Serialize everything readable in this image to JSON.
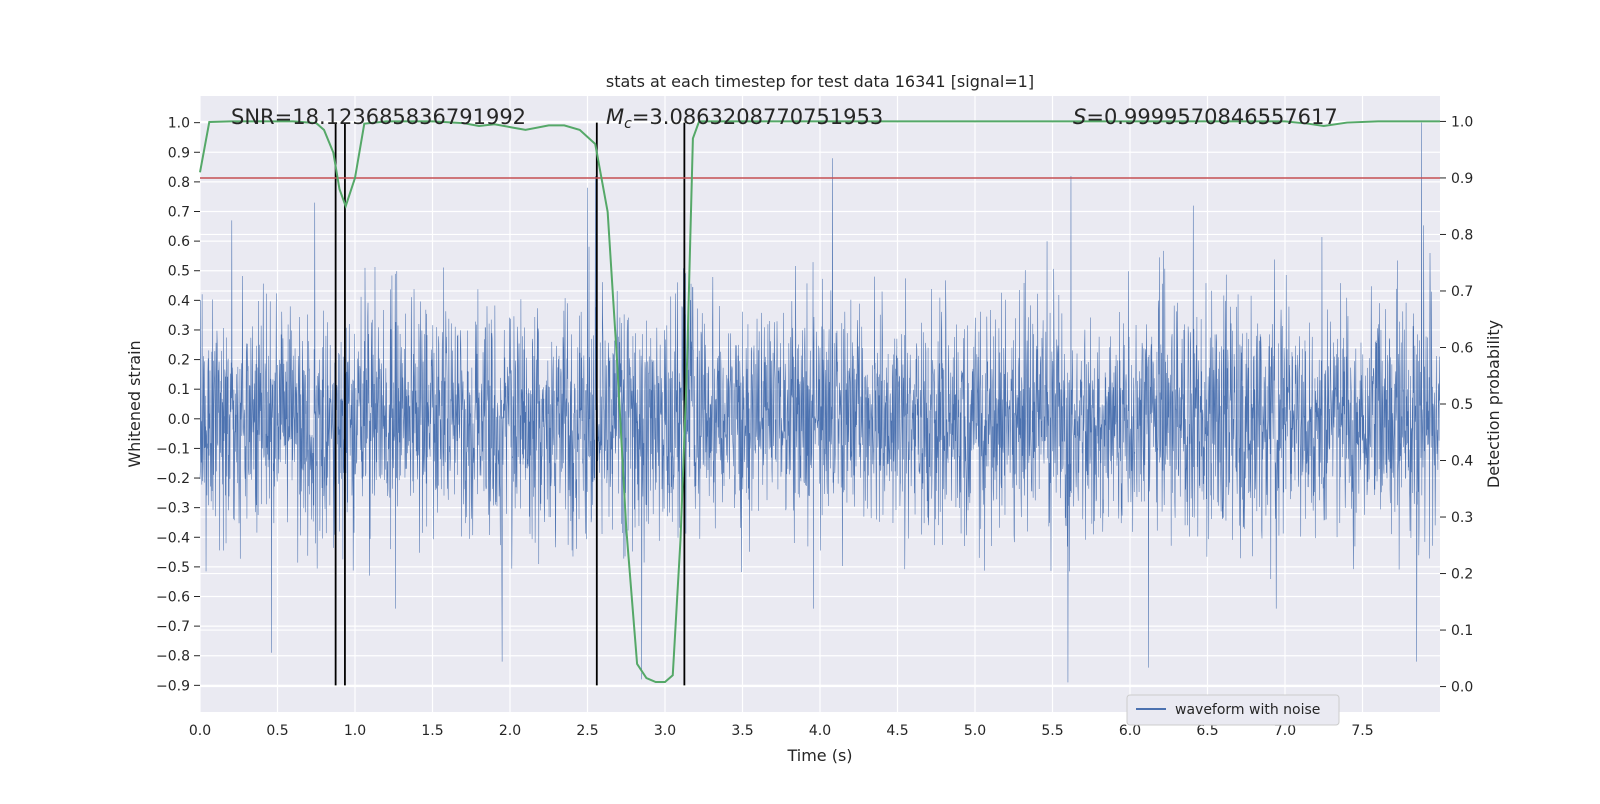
{
  "chart_data": {
    "type": "line",
    "title": "stats at each timestep for test data 16341 [signal=1]",
    "xlabel": "Time (s)",
    "ylabel": "Whitened strain",
    "y2label": "Detection probability",
    "xlim": [
      0.0,
      8.0
    ],
    "ylim": [
      -0.99,
      1.09
    ],
    "y2lim": [
      -0.045,
      1.045
    ],
    "grid": true,
    "x_ticks": [
      0.0,
      0.5,
      1.0,
      1.5,
      2.0,
      2.5,
      3.0,
      3.5,
      4.0,
      4.5,
      5.0,
      5.5,
      6.0,
      6.5,
      7.0,
      7.5
    ],
    "x_tick_labels": [
      "0.0",
      "0.5",
      "1.0",
      "1.5",
      "2.0",
      "2.5",
      "3.0",
      "3.5",
      "4.0",
      "4.5",
      "5.0",
      "5.5",
      "6.0",
      "6.5",
      "7.0",
      "7.5"
    ],
    "y_ticks": [
      1.0,
      0.9,
      0.8,
      0.7,
      0.6,
      0.5,
      0.4,
      0.3,
      0.2,
      0.1,
      0.0,
      -0.1,
      -0.2,
      -0.3,
      -0.4,
      -0.5,
      -0.6,
      -0.7,
      -0.8,
      -0.9
    ],
    "y_tick_labels": [
      "1.0",
      "0.9",
      "0.8",
      "0.7",
      "0.6",
      "0.5",
      "0.4",
      "0.3",
      "0.2",
      "0.1",
      "0.0",
      "−0.1",
      "−0.2",
      "−0.3",
      "−0.4",
      "−0.5",
      "−0.6",
      "−0.7",
      "−0.8",
      "−0.9"
    ],
    "y2_ticks": [
      1.0,
      0.9,
      0.8,
      0.7,
      0.6,
      0.5,
      0.4,
      0.3,
      0.2,
      0.1,
      0.0
    ],
    "y2_tick_labels": [
      "1.0",
      "0.9",
      "0.8",
      "0.7",
      "0.6",
      "0.5",
      "0.4",
      "0.3",
      "0.2",
      "0.1",
      "0.0"
    ],
    "series": [
      {
        "name": "waveform with noise",
        "axis": "left",
        "color": "#4c72b0",
        "style": "dense noise trace",
        "sampling": {
          "count": 4096,
          "x_start": 0.0,
          "x_end": 7.998
        },
        "typical_amplitude": 0.25,
        "max": 1.0,
        "min": -0.89,
        "peaks": [
          {
            "x": 7.88,
            "y": 1.0
          },
          {
            "x": 4.08,
            "y": 0.88
          },
          {
            "x": 2.55,
            "y": 0.82
          },
          {
            "x": 5.62,
            "y": 0.82
          },
          {
            "x": 0.74,
            "y": 0.73
          },
          {
            "x": 2.5,
            "y": 0.78
          },
          {
            "x": 5.6,
            "y": -0.89
          },
          {
            "x": 2.85,
            "y": -0.88
          },
          {
            "x": 7.85,
            "y": -0.82
          },
          {
            "x": 1.95,
            "y": -0.82
          },
          {
            "x": 0.46,
            "y": -0.79
          },
          {
            "x": 6.12,
            "y": -0.84
          }
        ]
      },
      {
        "name": "",
        "axis": "right",
        "color": "#55a868",
        "style": "line",
        "x": [
          0.0,
          0.06,
          0.2,
          0.4,
          0.6,
          0.75,
          0.8,
          0.86,
          0.9,
          0.94,
          1.0,
          1.06,
          1.2,
          1.5,
          1.7,
          1.8,
          1.9,
          2.0,
          2.1,
          2.25,
          2.35,
          2.45,
          2.55,
          2.63,
          2.69,
          2.75,
          2.82,
          2.88,
          2.94,
          3.0,
          3.05,
          3.1,
          3.14,
          3.18,
          3.22,
          3.3,
          3.5,
          5.0,
          6.0,
          7.0,
          7.15,
          7.25,
          7.4,
          7.6,
          8.0
        ],
        "y": [
          0.91,
          0.999,
          1.0,
          1.0,
          1.0,
          0.997,
          0.985,
          0.945,
          0.88,
          0.85,
          0.9,
          0.996,
          1.0,
          1.0,
          0.997,
          0.992,
          0.995,
          0.99,
          0.985,
          0.993,
          0.993,
          0.985,
          0.96,
          0.84,
          0.58,
          0.28,
          0.04,
          0.015,
          0.008,
          0.008,
          0.02,
          0.26,
          0.55,
          0.97,
          1.0,
          1.0,
          1.0,
          1.0,
          1.0,
          1.0,
          0.996,
          0.992,
          0.998,
          1.0,
          1.0
        ]
      }
    ],
    "threshold": {
      "axis": "right",
      "y": 0.9,
      "color": "#c44e52"
    },
    "vertical_markers": {
      "x": [
        0.875,
        0.935,
        2.56,
        3.125
      ],
      "color": "#000000",
      "y_range": [
        -0.9,
        1.0
      ]
    },
    "annotations": [
      {
        "text": "SNR=18.123685836791992"
      },
      {
        "symbol": "M",
        "subscript": "c",
        "text": "=3.0863208770751953"
      },
      {
        "symbol": "S",
        "text": "=0.9999570846557617"
      }
    ],
    "legend": {
      "placement": "lower-right",
      "entries": [
        "waveform with noise"
      ]
    }
  }
}
